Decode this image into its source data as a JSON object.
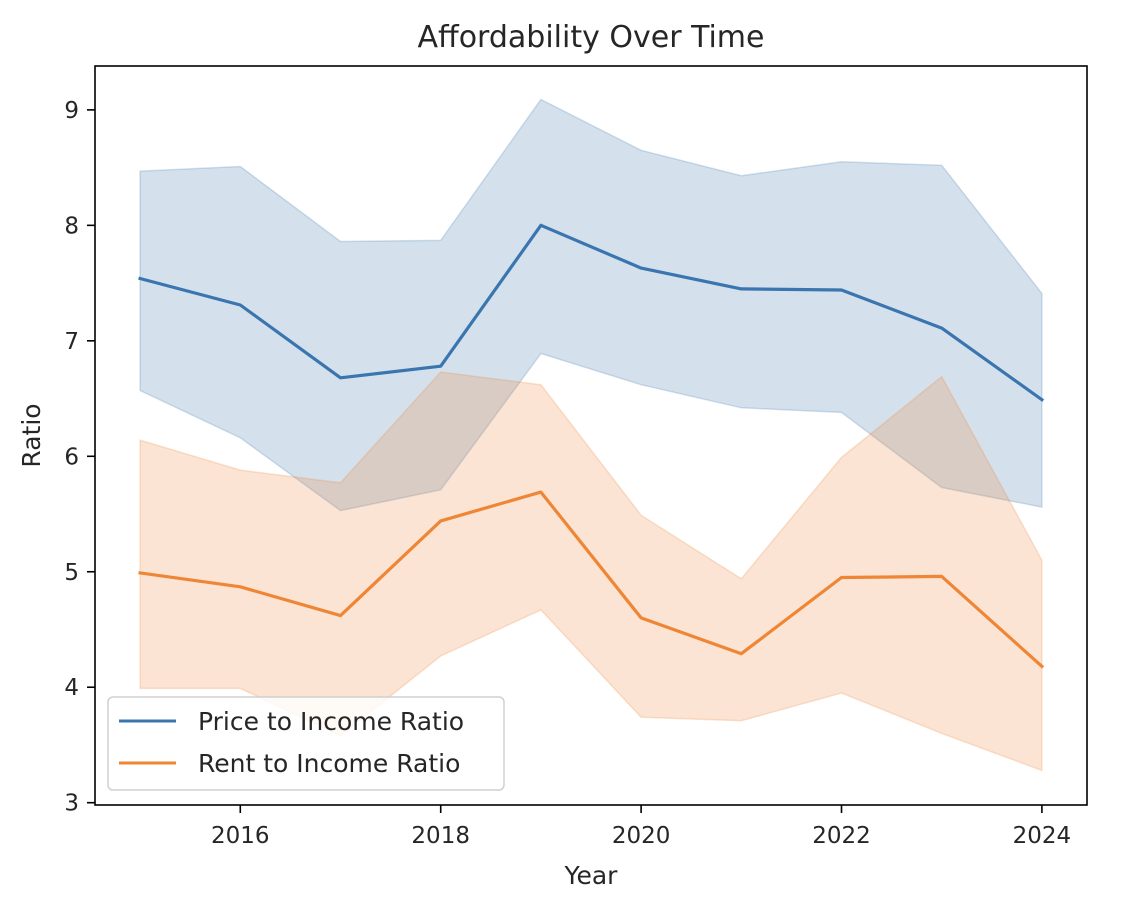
{
  "chart_data": {
    "type": "line",
    "title": "Affordability Over Time",
    "xlabel": "Year",
    "ylabel": "Ratio",
    "x": [
      2015,
      2016,
      2017,
      2018,
      2019,
      2020,
      2021,
      2022,
      2023,
      2024
    ],
    "xlim": [
      2014.55,
      2024.45
    ],
    "ylim": [
      2.98,
      9.38
    ],
    "xticks": [
      2016,
      2018,
      2020,
      2022,
      2024
    ],
    "yticks": [
      3,
      4,
      5,
      6,
      7,
      8,
      9
    ],
    "grid": false,
    "legend_position": "lower-left",
    "series": [
      {
        "name": "Price to Income Ratio",
        "color": "#3b75af",
        "values": [
          7.54,
          7.31,
          6.68,
          6.78,
          8.0,
          7.63,
          7.45,
          7.44,
          7.11,
          6.49
        ],
        "band_low": [
          6.57,
          6.16,
          5.53,
          5.71,
          6.89,
          6.62,
          6.42,
          6.38,
          5.73,
          5.56
        ],
        "band_high": [
          8.47,
          8.51,
          7.86,
          7.87,
          9.09,
          8.65,
          8.43,
          8.55,
          8.52,
          7.41
        ]
      },
      {
        "name": "Rent to Income Ratio",
        "color": "#ef8636",
        "values": [
          4.99,
          4.87,
          4.62,
          5.44,
          5.69,
          4.6,
          4.29,
          4.95,
          4.96,
          4.18
        ],
        "band_low": [
          3.99,
          3.99,
          3.58,
          4.27,
          4.67,
          3.74,
          3.71,
          3.95,
          3.6,
          3.28
        ],
        "band_high": [
          6.14,
          5.88,
          5.77,
          6.73,
          6.62,
          5.49,
          4.94,
          5.99,
          6.69,
          5.1
        ]
      }
    ]
  }
}
